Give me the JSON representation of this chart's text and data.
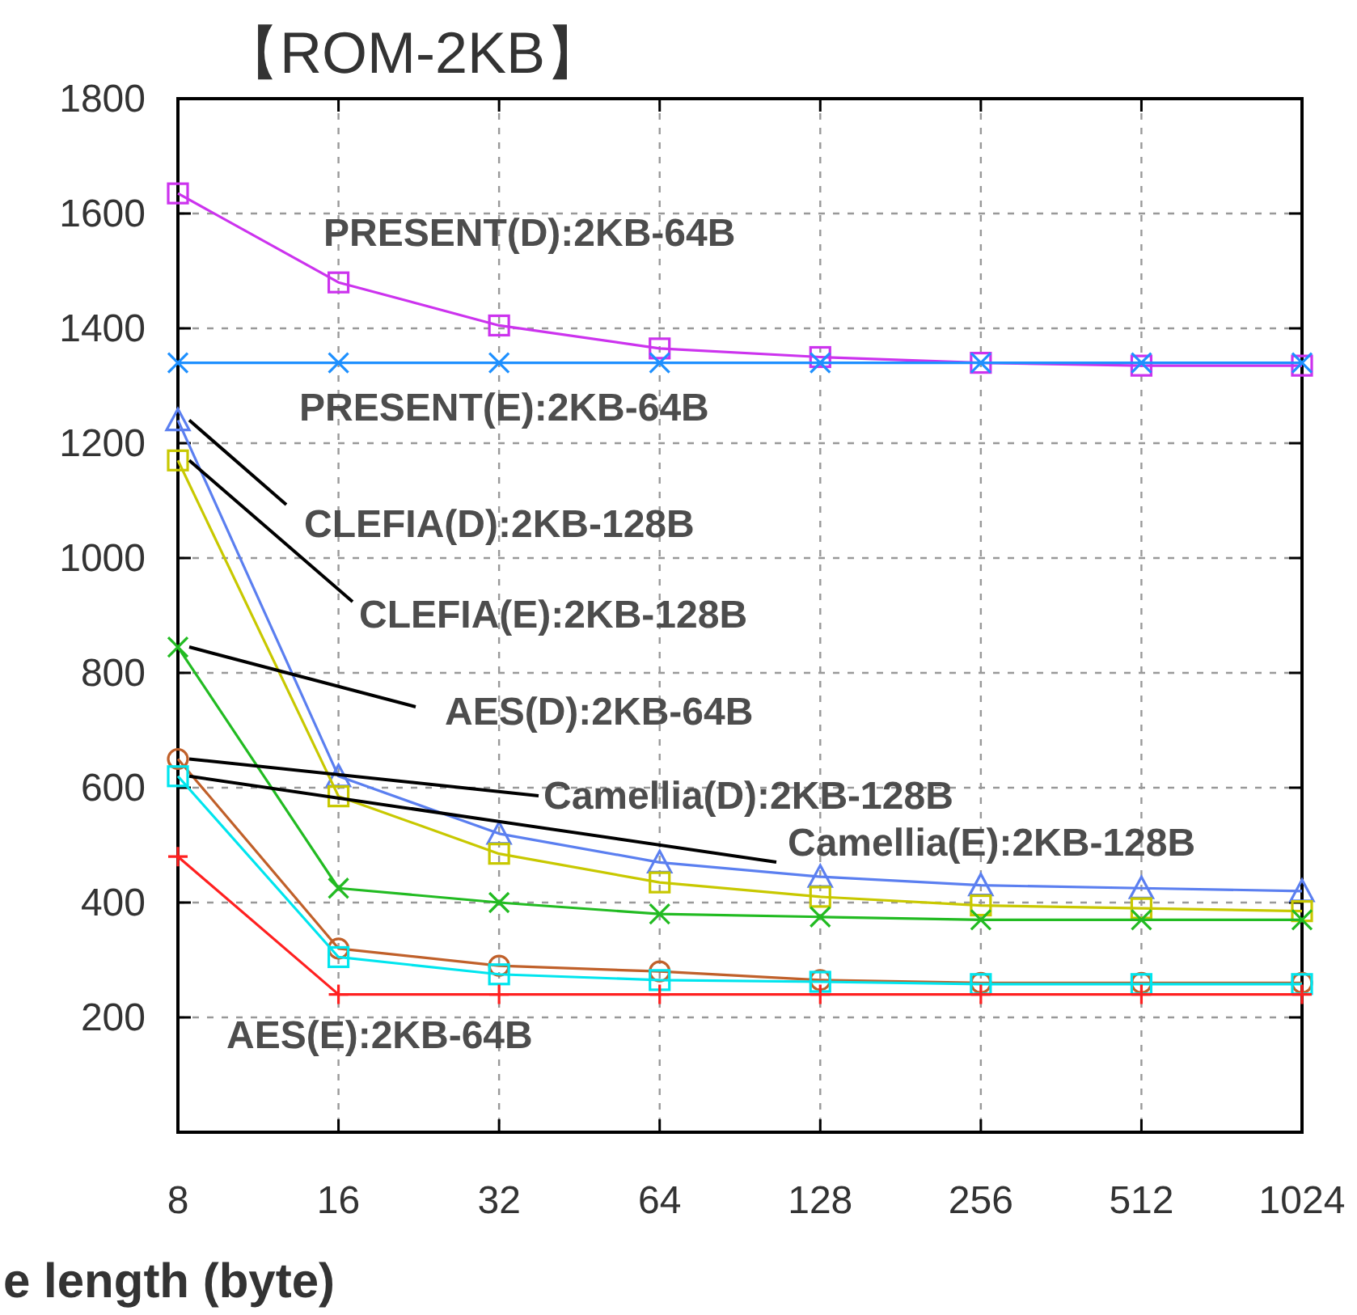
{
  "chart_data": {
    "type": "line",
    "title": "【ROM-2KB】",
    "xlabel": "e length (byte)",
    "categories": [
      "8",
      "16",
      "32",
      "64",
      "128",
      "256",
      "512",
      "1024"
    ],
    "ylim": [
      0,
      1800
    ],
    "yticks": [
      200,
      400,
      600,
      800,
      1000,
      1200,
      1400,
      1600,
      1800
    ],
    "grid": true,
    "annotations": [
      "PRESENT(D):2KB-64B",
      "PRESENT(E):2KB-64B",
      {
        "text": "CLEFIA(D):2KB-128B",
        "x": "8",
        "y": 1240
      },
      {
        "text": "CLEFIA(E):2KB-128B",
        "x": "8",
        "y": 1170
      },
      {
        "text": "AES(D):2KB-64B",
        "x": "8",
        "y": 845
      },
      {
        "text": "Camellia(D):2KB-128B",
        "x": "8",
        "y": 650
      },
      {
        "text": "Camellia(E):2KB-128B",
        "x": "8",
        "y": 620
      },
      "AES(E):2KB-64B"
    ],
    "series": [
      {
        "color": "#cc33ee",
        "marker": "square",
        "values": [
          1635,
          1480,
          1405,
          1365,
          1350,
          1340,
          1335,
          1335
        ]
      },
      {
        "color": "#1e90ff",
        "marker": "cross",
        "values": [
          1340,
          1340,
          1340,
          1340,
          1340,
          1340,
          1340,
          1340
        ]
      },
      {
        "color": "#5b7ff0",
        "marker": "triangle",
        "values": [
          1240,
          620,
          520,
          470,
          445,
          430,
          425,
          420
        ]
      },
      {
        "color": "#c8c800",
        "marker": "square",
        "values": [
          1170,
          585,
          485,
          435,
          410,
          395,
          390,
          385
        ]
      },
      {
        "color": "#22bb22",
        "marker": "cross",
        "values": [
          845,
          425,
          400,
          380,
          375,
          370,
          370,
          370
        ]
      },
      {
        "color": "#c0602a",
        "marker": "circle",
        "values": [
          650,
          320,
          290,
          280,
          265,
          260,
          260,
          260
        ]
      },
      {
        "color": "#00e5ee",
        "marker": "square",
        "values": [
          620,
          305,
          275,
          265,
          262,
          258,
          258,
          258
        ]
      },
      {
        "color": "#ff2020",
        "marker": "plus",
        "values": [
          480,
          240,
          240,
          240,
          240,
          240,
          240,
          240
        ]
      }
    ]
  }
}
